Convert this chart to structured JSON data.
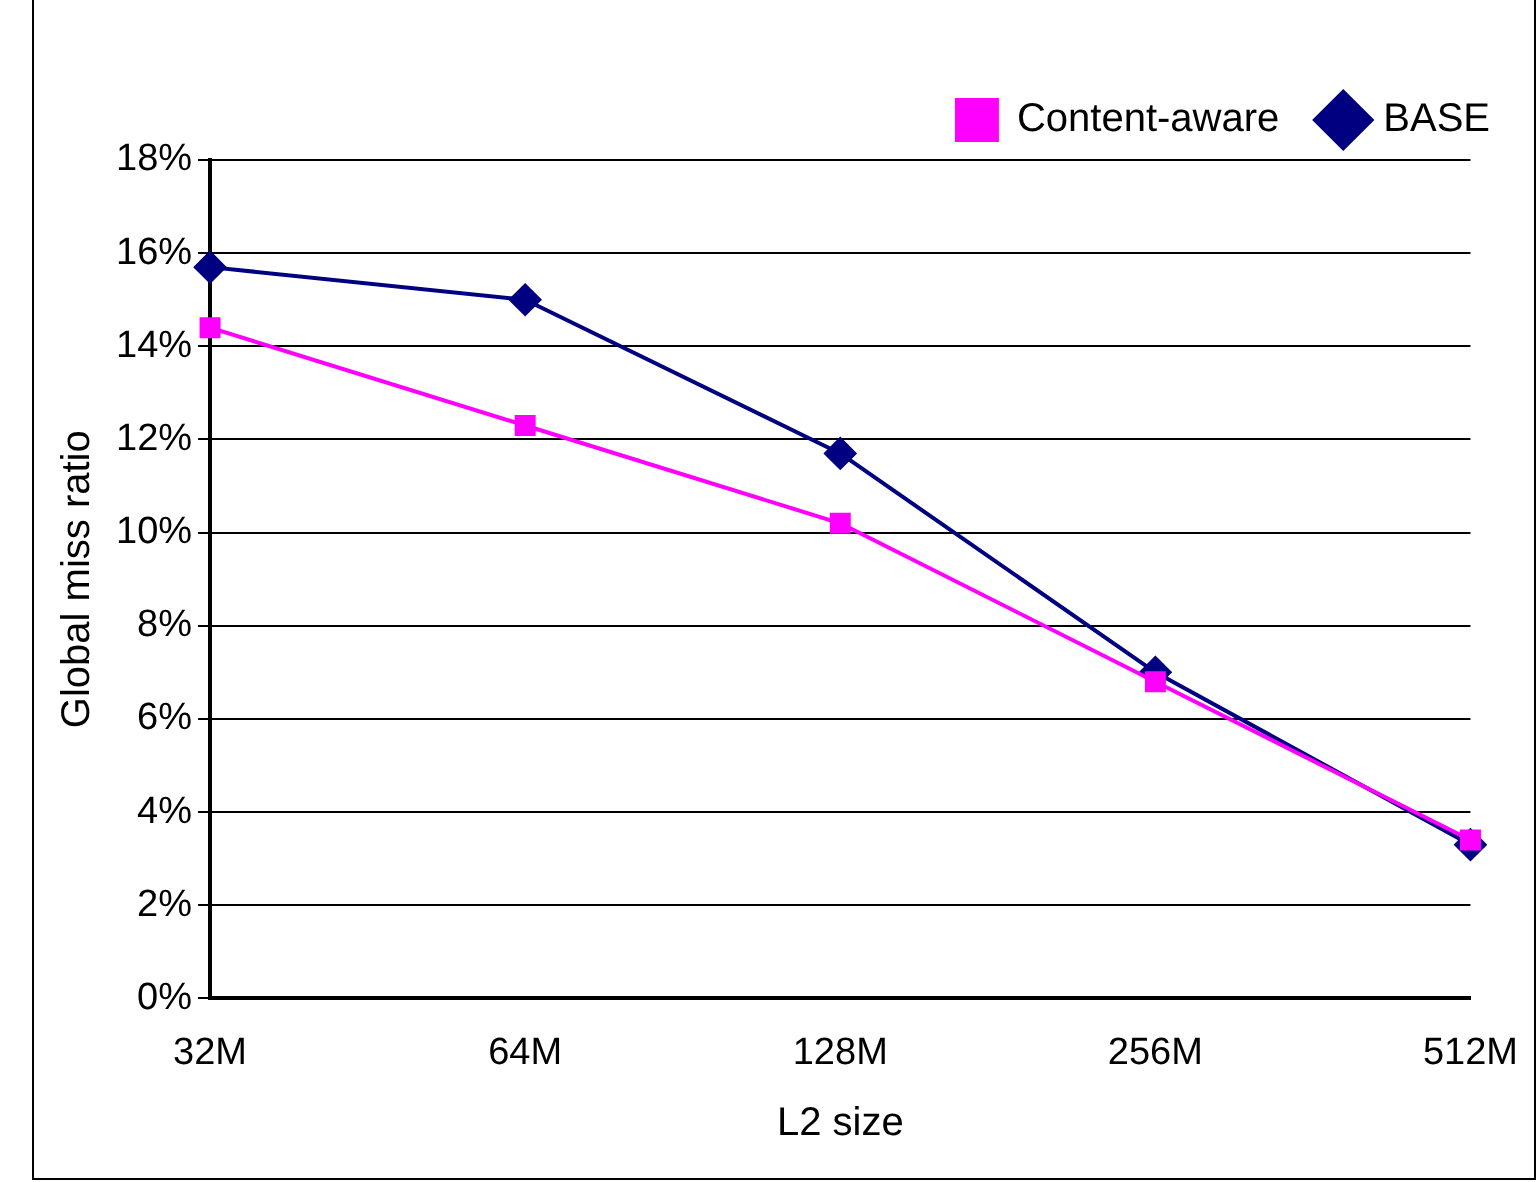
{
  "chart_data": {
    "type": "line",
    "xlabel": "L2 size",
    "ylabel": "Global miss ratio",
    "categories": [
      "32M",
      "64M",
      "128M",
      "256M",
      "512M"
    ],
    "series": [
      {
        "name": "BASE",
        "color": "#000080",
        "marker": "diamond",
        "values": [
          15.7,
          15.0,
          11.7,
          7.0,
          3.3
        ]
      },
      {
        "name": "Content-aware",
        "color": "#ff00ff",
        "marker": "square",
        "values": [
          14.4,
          12.3,
          10.2,
          6.8,
          3.4
        ]
      }
    ],
    "ylim": [
      0,
      18
    ],
    "yticks": [
      {
        "value": 0,
        "label": "0%"
      },
      {
        "value": 2,
        "label": "2%"
      },
      {
        "value": 4,
        "label": "4%"
      },
      {
        "value": 6,
        "label": "6%"
      },
      {
        "value": 8,
        "label": "8%"
      },
      {
        "value": 10,
        "label": "10%"
      },
      {
        "value": 12,
        "label": "12%"
      },
      {
        "value": 14,
        "label": "14%"
      },
      {
        "value": 16,
        "label": "16%"
      },
      {
        "value": 18,
        "label": "18%"
      }
    ],
    "grid": "y",
    "legend": "top right"
  }
}
